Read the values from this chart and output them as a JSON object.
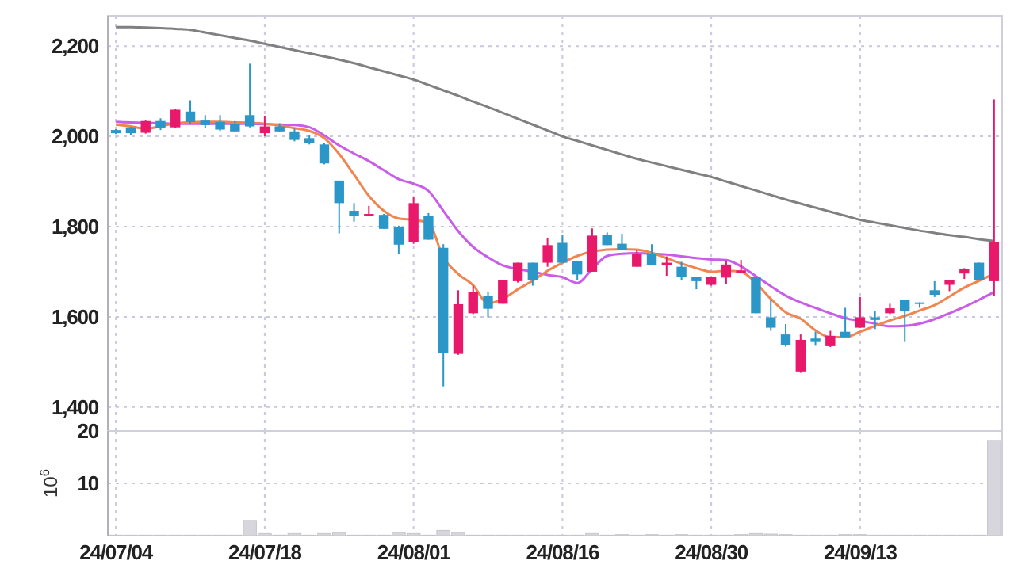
{
  "chart_data": [
    {
      "type": "candlestick",
      "ohlc": [
        [
          2014,
          2016,
          2005,
          2007
        ],
        [
          2020,
          2021,
          2002,
          2007
        ],
        [
          2008,
          2035,
          2006,
          2034
        ],
        [
          2034,
          2040,
          2014,
          2019
        ],
        [
          2020,
          2061,
          2018,
          2059
        ],
        [
          2055,
          2080,
          2028,
          2032
        ],
        [
          2035,
          2047,
          2019,
          2025
        ],
        [
          2032,
          2047,
          2012,
          2015
        ],
        [
          2027,
          2034,
          2009,
          2011
        ],
        [
          2047,
          2161,
          2020,
          2022
        ],
        [
          2007,
          2044,
          2000,
          2022
        ],
        [
          2022,
          2029,
          2009,
          2011
        ],
        [
          2011,
          2017,
          1989,
          1992
        ],
        [
          1996,
          2002,
          1982,
          1985
        ],
        [
          1982,
          1985,
          1938,
          1940
        ],
        [
          1902,
          1902,
          1785,
          1852
        ],
        [
          1835,
          1852,
          1811,
          1824
        ],
        [
          1825,
          1846,
          1824,
          1828
        ],
        [
          1826,
          1828,
          1795,
          1795
        ],
        [
          1799,
          1802,
          1740,
          1760
        ],
        [
          1765,
          1867,
          1762,
          1852
        ],
        [
          1824,
          1830,
          1771,
          1771
        ],
        [
          1753,
          1761,
          1446,
          1520
        ],
        [
          1518,
          1659,
          1516,
          1628
        ],
        [
          1608,
          1669,
          1606,
          1656
        ],
        [
          1647,
          1655,
          1599,
          1618
        ],
        [
          1629,
          1682,
          1629,
          1682
        ],
        [
          1679,
          1720,
          1676,
          1720
        ],
        [
          1720,
          1720,
          1669,
          1682
        ],
        [
          1720,
          1775,
          1711,
          1759
        ],
        [
          1764,
          1781,
          1720,
          1720
        ],
        [
          1724,
          1724,
          1682,
          1694
        ],
        [
          1700,
          1796,
          1700,
          1780
        ],
        [
          1781,
          1787,
          1759,
          1759
        ],
        [
          1762,
          1784,
          1748,
          1749
        ],
        [
          1711,
          1749,
          1711,
          1740
        ],
        [
          1740,
          1761,
          1714,
          1714
        ],
        [
          1714,
          1734,
          1691,
          1720
        ],
        [
          1711,
          1722,
          1681,
          1688
        ],
        [
          1688,
          1688,
          1661,
          1679
        ],
        [
          1671,
          1690,
          1669,
          1688
        ],
        [
          1687,
          1725,
          1672,
          1716
        ],
        [
          1697,
          1726,
          1696,
          1703
        ],
        [
          1688,
          1688,
          1608,
          1608
        ],
        [
          1599,
          1638,
          1569,
          1576
        ],
        [
          1561,
          1584,
          1534,
          1538
        ],
        [
          1479,
          1561,
          1476,
          1549
        ],
        [
          1552,
          1567,
          1536,
          1546
        ],
        [
          1535,
          1569,
          1533,
          1558
        ],
        [
          1567,
          1620,
          1555,
          1555
        ],
        [
          1576,
          1644,
          1576,
          1599
        ],
        [
          1599,
          1612,
          1573,
          1593
        ],
        [
          1608,
          1629,
          1606,
          1619
        ],
        [
          1638,
          1638,
          1546,
          1612
        ],
        [
          1632,
          1632,
          1620,
          1629
        ],
        [
          1659,
          1679,
          1644,
          1649
        ],
        [
          1671,
          1682,
          1657,
          1682
        ],
        [
          1696,
          1708,
          1684,
          1706
        ],
        [
          1720,
          1720,
          1681,
          1681
        ],
        [
          1679,
          2082,
          1647,
          1765
        ]
      ],
      "colors": [
        "#2b96c8",
        "#2b96c8",
        "#e8196a",
        "#2b96c8",
        "#e8196a",
        "#2b96c8",
        "#2b96c8",
        "#2b96c8",
        "#2b96c8",
        "#2b96c8",
        "#e8196a",
        "#2b96c8",
        "#2b96c8",
        "#2b96c8",
        "#2b96c8",
        "#2b96c8",
        "#2b96c8",
        "#e8196a",
        "#2b96c8",
        "#2b96c8",
        "#e8196a",
        "#2b96c8",
        "#2b96c8",
        "#e8196a",
        "#e8196a",
        "#2b96c8",
        "#e8196a",
        "#e8196a",
        "#2b96c8",
        "#e8196a",
        "#2b96c8",
        "#2b96c8",
        "#e8196a",
        "#2b96c8",
        "#2b96c8",
        "#e8196a",
        "#2b96c8",
        "#e8196a",
        "#2b96c8",
        "#2b96c8",
        "#e8196a",
        "#e8196a",
        "#e8196a",
        "#2b96c8",
        "#2b96c8",
        "#2b96c8",
        "#e8196a",
        "#2b96c8",
        "#e8196a",
        "#2b96c8",
        "#e8196a",
        "#2b96c8",
        "#e8196a",
        "#2b96c8",
        "#2b96c8",
        "#2b96c8",
        "#e8196a",
        "#e8196a",
        "#2b96c8",
        "#e8196a"
      ],
      "series": [
        {
          "type": "line",
          "color": "#808080",
          "values": [
            2242,
            2242,
            2241,
            2240,
            2238,
            2236,
            2230,
            2224,
            2218,
            2212,
            2205,
            2198,
            2191,
            2184,
            2177,
            2170,
            2162,
            2153,
            2144,
            2135,
            2126,
            2114,
            2102,
            2090,
            2077,
            2065,
            2052,
            2039,
            2026,
            2013,
            2000,
            1990,
            1980,
            1970,
            1960,
            1950,
            1942,
            1934,
            1926,
            1918,
            1910,
            1900,
            1890,
            1880,
            1870,
            1860,
            1851,
            1842,
            1833,
            1824,
            1815,
            1809,
            1803,
            1797,
            1791,
            1786,
            1781,
            1777,
            1772,
            1768
          ]
        },
        {
          "type": "line",
          "color": "#c95ce8",
          "values": [
            2032,
            2031,
            2030,
            2029,
            2028,
            2028,
            2028,
            2028,
            2028,
            2028,
            2027,
            2026,
            2025,
            2020,
            2002,
            1980,
            1962,
            1945,
            1925,
            1905,
            1895,
            1879,
            1835,
            1790,
            1755,
            1732,
            1714,
            1706,
            1700,
            1693,
            1688,
            1675,
            1706,
            1735,
            1740,
            1741,
            1740,
            1738,
            1734,
            1730,
            1727,
            1726,
            1712,
            1690,
            1668,
            1647,
            1632,
            1620,
            1608,
            1597,
            1591,
            1585,
            1579,
            1580,
            1585,
            1595,
            1608,
            1622,
            1638,
            1655
          ]
        },
        {
          "type": "line",
          "color": "#f0854f",
          "values": [
            2026,
            2022,
            2017,
            2022,
            2029,
            2031,
            2032,
            2032,
            2031,
            2030,
            2028,
            2024,
            2018,
            2012,
            1996,
            1961,
            1915,
            1868,
            1835,
            1818,
            1815,
            1808,
            1732,
            1695,
            1670,
            1630,
            1640,
            1661,
            1680,
            1702,
            1720,
            1735,
            1745,
            1749,
            1750,
            1749,
            1742,
            1730,
            1718,
            1708,
            1700,
            1702,
            1700,
            1675,
            1640,
            1610,
            1596,
            1570,
            1555,
            1555,
            1567,
            1580,
            1592,
            1602,
            1614,
            1626,
            1645,
            1665,
            1680,
            1696
          ]
        }
      ],
      "ylim": [
        1347,
        2267
      ],
      "yticks": [
        {
          "value": 1400,
          "label": "1,400"
        },
        {
          "value": 1600,
          "label": "1,600"
        },
        {
          "value": 1800,
          "label": "1,800"
        },
        {
          "value": 2000,
          "label": "2,000"
        },
        {
          "value": 2200,
          "label": "2,200"
        }
      ],
      "grid": true,
      "tick_labels": "y"
    },
    {
      "type": "bar",
      "ylabel": "10$^{6}$",
      "categories": [
        "24/07/04",
        null,
        null,
        null,
        null,
        null,
        null,
        null,
        null,
        null,
        "24/07/18",
        null,
        null,
        null,
        null,
        null,
        null,
        null,
        null,
        null,
        "24/08/01",
        null,
        null,
        null,
        null,
        null,
        null,
        null,
        null,
        null,
        "24/08/16",
        null,
        null,
        null,
        null,
        null,
        null,
        null,
        null,
        null,
        "24/08/30",
        null,
        null,
        null,
        null,
        null,
        null,
        null,
        null,
        null,
        "24/09/13",
        null,
        null,
        null,
        null,
        null,
        null,
        null,
        null,
        null
      ],
      "values": [
        0.1,
        0.1,
        0.1,
        0.1,
        0.1,
        0.1,
        0.1,
        0.1,
        0.1,
        2.9,
        0.4,
        0.1,
        0.4,
        0.1,
        0.4,
        0.6,
        0.1,
        0.1,
        0.1,
        0.6,
        0.4,
        0.1,
        1.0,
        0.6,
        0.1,
        0.1,
        0.1,
        0.1,
        0.1,
        0.1,
        0.1,
        0.1,
        0.4,
        0.1,
        0.2,
        0.1,
        0.2,
        0.1,
        0.2,
        0.1,
        0.1,
        0.1,
        0.2,
        0.4,
        0.3,
        0.2,
        0.1,
        0.1,
        0.1,
        0.2,
        0.2,
        0.1,
        0.1,
        0.1,
        0.1,
        0.1,
        0.1,
        0.1,
        0.1,
        18.2
      ],
      "color": "#d6d6dc",
      "ylim": [
        0,
        20
      ],
      "yticks": [
        10,
        20
      ],
      "grid": true
    }
  ]
}
